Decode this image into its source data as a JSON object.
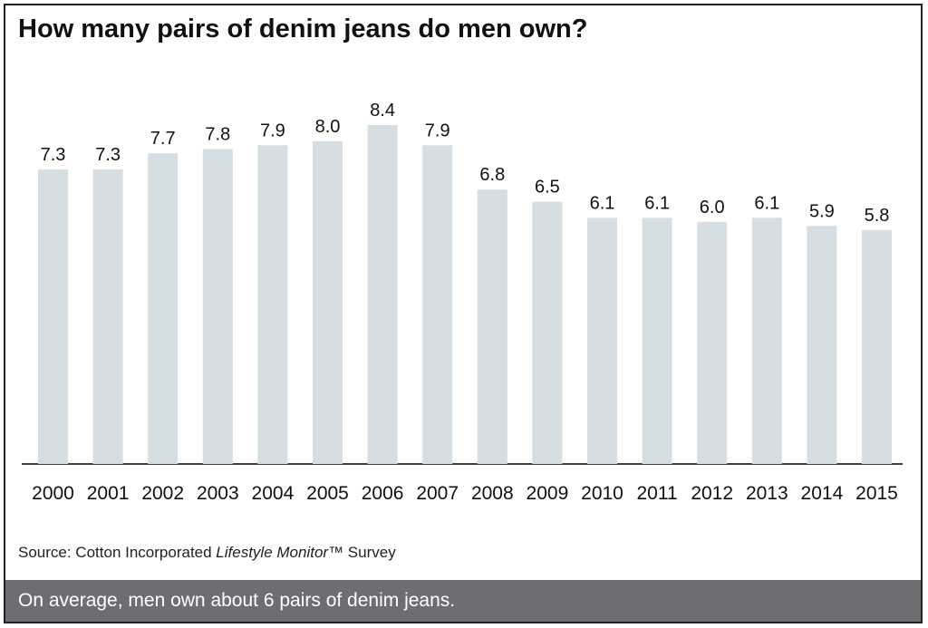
{
  "chart_data": {
    "type": "bar",
    "title": "How many pairs of denim jeans do men own?",
    "categories": [
      "2000",
      "2001",
      "2002",
      "2003",
      "2004",
      "2005",
      "2006",
      "2007",
      "2008",
      "2009",
      "2010",
      "2011",
      "2012",
      "2013",
      "2014",
      "2015"
    ],
    "values": [
      7.3,
      7.3,
      7.7,
      7.8,
      7.9,
      8.0,
      8.4,
      7.9,
      6.8,
      6.5,
      6.1,
      6.1,
      6.0,
      6.1,
      5.9,
      5.8
    ],
    "value_labels": [
      "7.3",
      "7.3",
      "7.7",
      "7.8",
      "7.9",
      "8.0",
      "8.4",
      "7.9",
      "6.8",
      "6.5",
      "6.1",
      "6.1",
      "6.0",
      "6.1",
      "5.9",
      "5.8"
    ],
    "ylim": [
      0,
      8.4
    ],
    "grid": false,
    "bar_color": "#d5dee2",
    "axis_color": "#000000"
  },
  "source": {
    "prefix": "Source: Cotton Incorporated ",
    "italic": "Lifestyle Monitor",
    "suffix": "™ Survey"
  },
  "footer": {
    "text": "On average, men own about 6 pairs of denim jeans.",
    "background": "#6d6e71"
  }
}
